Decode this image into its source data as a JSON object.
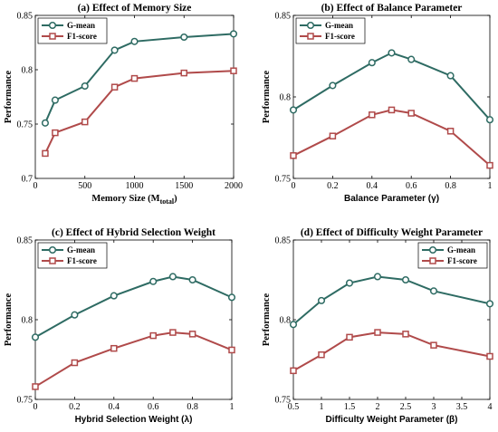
{
  "colors": {
    "gmean": "#2e6b63",
    "f1": "#b04a4a"
  },
  "chart_data": [
    {
      "type": "line",
      "title": "(a) Effect of Memory Size",
      "xlabel": "Memory Size (M",
      "xlabel_sub": "total",
      "xlabel_close": ")",
      "ylabel": "Performance",
      "xlim": [
        0,
        2000
      ],
      "ylim": [
        0.7,
        0.85
      ],
      "xticks": [
        0,
        500,
        1000,
        1500,
        2000
      ],
      "xtick_labels": [
        "0",
        "500",
        "1000",
        "1500",
        "2000"
      ],
      "yticks": [
        0.7,
        0.75,
        0.8,
        0.85
      ],
      "ytick_labels": [
        "0.7",
        "0.75",
        "0.8",
        "0.85"
      ],
      "legend_position": "top-left",
      "x": [
        100,
        200,
        500,
        800,
        1000,
        1500,
        2000
      ],
      "series": [
        {
          "name": "G-mean",
          "marker": "circle",
          "values": [
            0.751,
            0.772,
            0.785,
            0.818,
            0.826,
            0.83,
            0.833
          ]
        },
        {
          "name": "F1-score",
          "marker": "square",
          "values": [
            0.723,
            0.742,
            0.752,
            0.784,
            0.792,
            0.797,
            0.799
          ]
        }
      ]
    },
    {
      "type": "line",
      "title": "(b) Effect of Balance Parameter",
      "xlabel": "Balance Parameter (γ)",
      "ylabel": "Performance",
      "xlim": [
        0,
        1
      ],
      "ylim": [
        0.75,
        0.85
      ],
      "xticks": [
        0,
        0.2,
        0.4,
        0.6,
        0.8,
        1
      ],
      "xtick_labels": [
        "0",
        "0.2",
        "0.4",
        "0.6",
        "0.8",
        "1"
      ],
      "yticks": [
        0.75,
        0.8,
        0.85
      ],
      "ytick_labels": [
        "0.75",
        "0.8",
        "0.85"
      ],
      "legend_position": "top-left",
      "x": [
        0,
        0.2,
        0.4,
        0.5,
        0.6,
        0.8,
        1.0
      ],
      "series": [
        {
          "name": "G-mean",
          "marker": "circle",
          "values": [
            0.792,
            0.807,
            0.821,
            0.827,
            0.823,
            0.813,
            0.786
          ]
        },
        {
          "name": "F1-score",
          "marker": "square",
          "values": [
            0.764,
            0.776,
            0.789,
            0.792,
            0.79,
            0.779,
            0.758
          ]
        }
      ]
    },
    {
      "type": "line",
      "title": "(c) Effect of Hybrid Selection Weight",
      "xlabel": "Hybrid Selection Weight (λ)",
      "ylabel": "Performance",
      "xlim": [
        0,
        1
      ],
      "ylim": [
        0.75,
        0.85
      ],
      "xticks": [
        0,
        0.2,
        0.4,
        0.6,
        0.8,
        1
      ],
      "xtick_labels": [
        "0",
        "0.2",
        "0.4",
        "0.6",
        "0.8",
        "1"
      ],
      "yticks": [
        0.75,
        0.8,
        0.85
      ],
      "ytick_labels": [
        "0.75",
        "0.8",
        "0.85"
      ],
      "legend_position": "top-left",
      "x": [
        0,
        0.2,
        0.4,
        0.6,
        0.7,
        0.8,
        1.0
      ],
      "series": [
        {
          "name": "G-mean",
          "marker": "circle",
          "values": [
            0.789,
            0.803,
            0.815,
            0.824,
            0.827,
            0.825,
            0.814
          ]
        },
        {
          "name": "F1-score",
          "marker": "square",
          "values": [
            0.758,
            0.773,
            0.782,
            0.79,
            0.792,
            0.791,
            0.781
          ]
        }
      ]
    },
    {
      "type": "line",
      "title": "(d) Effect of Difficulty Weight Parameter",
      "xlabel": "Difficulty Weight Parameter (β)",
      "ylabel": "Performance",
      "xlim": [
        0.5,
        4
      ],
      "ylim": [
        0.75,
        0.85
      ],
      "xticks": [
        0.5,
        1,
        1.5,
        2,
        2.5,
        3,
        3.5,
        4
      ],
      "xtick_labels": [
        "0.5",
        "1",
        "1.5",
        "2",
        "2.5",
        "3",
        "3.5",
        "4"
      ],
      "yticks": [
        0.75,
        0.8,
        0.85
      ],
      "ytick_labels": [
        "0.75",
        "0.8",
        "0.85"
      ],
      "legend_position": "top-right",
      "x": [
        0.5,
        1.0,
        1.5,
        2.0,
        2.5,
        3.0,
        4.0
      ],
      "series": [
        {
          "name": "G-mean",
          "marker": "circle",
          "values": [
            0.797,
            0.812,
            0.823,
            0.827,
            0.825,
            0.818,
            0.81
          ]
        },
        {
          "name": "F1-score",
          "marker": "square",
          "values": [
            0.768,
            0.778,
            0.789,
            0.792,
            0.791,
            0.784,
            0.777
          ]
        }
      ]
    }
  ]
}
